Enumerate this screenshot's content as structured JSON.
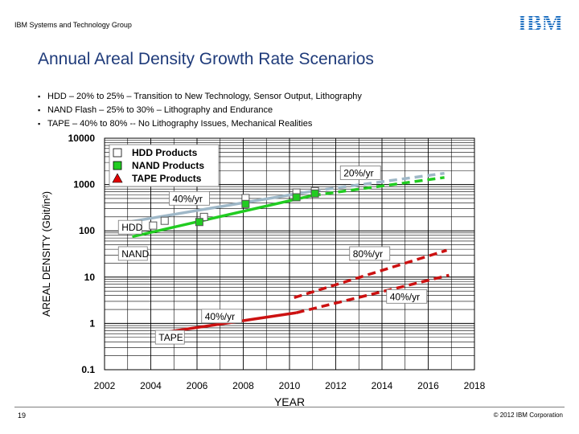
{
  "header": {
    "group": "IBM Systems and Technology Group"
  },
  "logo": {
    "text": "IBM",
    "color": "#1f70c1"
  },
  "title": "Annual Areal Density Growth Rate Scenarios",
  "bullets": [
    "HDD – 20% to 25% – Transition to New Technology, Sensor Output, Lithography",
    "NAND Flash – 25% to 30% – Lithography and Endurance",
    "TAPE – 40% to 80% -- No Lithography Issues, Mechanical Realities"
  ],
  "chart_data": {
    "type": "scatter",
    "xlabel": "YEAR",
    "ylabel": "AREAL DENSITY (Gbit/in²)",
    "xlim": [
      2002,
      2018
    ],
    "ylim": [
      0.1,
      10000
    ],
    "y_scale": "log",
    "x_ticks": [
      "2002",
      "2004",
      "2006",
      "2008",
      "2010",
      "2012",
      "2014",
      "2016",
      "2018"
    ],
    "y_ticks": [
      "10000",
      "1000",
      "100",
      "10",
      "1",
      "0.1"
    ],
    "grid": true,
    "legend_position": "top-left",
    "legend": [
      {
        "label": "HDD Products",
        "marker": "square",
        "color": "#ffffff"
      },
      {
        "label": "NAND Products",
        "marker": "square",
        "color": "#21cc21"
      },
      {
        "label": "TAPE Products",
        "marker": "triangle",
        "color": "#e00000"
      }
    ],
    "series": [
      {
        "name": "HDD Products",
        "color": "#ffffff",
        "marker": "square",
        "x": [
          2004.1,
          2004.6,
          2006.3,
          2008.1,
          2010.3,
          2011.1
        ],
        "y": [
          130,
          165,
          200,
          510,
          670,
          720
        ]
      },
      {
        "name": "NAND Products",
        "color": "#21cc21",
        "marker": "square",
        "x": [
          2006.1,
          2008.1,
          2010.3,
          2011.1
        ],
        "y": [
          155,
          380,
          530,
          640
        ]
      }
    ],
    "trend_lines": [
      {
        "series": "HDD",
        "style": "solid",
        "color": "#9fb8c8",
        "x": [
          2003.2,
          2011.0
        ],
        "y": [
          160,
          720
        ]
      },
      {
        "series": "HDD",
        "style": "dashed",
        "color": "#9fb8c8",
        "x": [
          2011.0,
          2016.7
        ],
        "y": [
          720,
          1750
        ]
      },
      {
        "series": "NAND",
        "style": "solid",
        "color": "#21cc21",
        "x": [
          2003.2,
          2011.0
        ],
        "y": [
          75,
          580
        ]
      },
      {
        "series": "NAND",
        "style": "dashed",
        "color": "#21cc21",
        "x": [
          2011.0,
          2016.7
        ],
        "y": [
          580,
          1420
        ]
      },
      {
        "series": "TAPE",
        "style": "dashed",
        "color": "#cc1111",
        "x": [
          2010.2,
          2016.8
        ],
        "y": [
          3.6,
          38
        ]
      },
      {
        "series": "TAPE",
        "style": "solid",
        "color": "#cc1111",
        "x": [
          2004.4,
          2010.3
        ],
        "y": [
          0.62,
          1.7
        ]
      },
      {
        "series": "TAPE",
        "style": "dashed",
        "color": "#cc1111",
        "x": [
          2010.3,
          2016.9
        ],
        "y": [
          1.7,
          11
        ]
      }
    ],
    "annotations": [
      {
        "text": "20%/yr",
        "x": 2012.2,
        "y": 1500
      },
      {
        "text": "40%/yr",
        "x": 2004.8,
        "y": 420
      },
      {
        "text": "HDD",
        "x": 2002.6,
        "y": 100
      },
      {
        "text": "NAND",
        "x": 2002.6,
        "y": 27
      },
      {
        "text": "80%/yr",
        "x": 2012.6,
        "y": 27
      },
      {
        "text": "40%/yr",
        "x": 2014.2,
        "y": 3.2
      },
      {
        "text": "40%/yr",
        "x": 2006.2,
        "y": 1.2
      },
      {
        "text": "TAPE",
        "x": 2004.2,
        "y": 0.42
      }
    ]
  },
  "footer": {
    "page": "19",
    "copyright": "© 2012 IBM Corporation"
  }
}
